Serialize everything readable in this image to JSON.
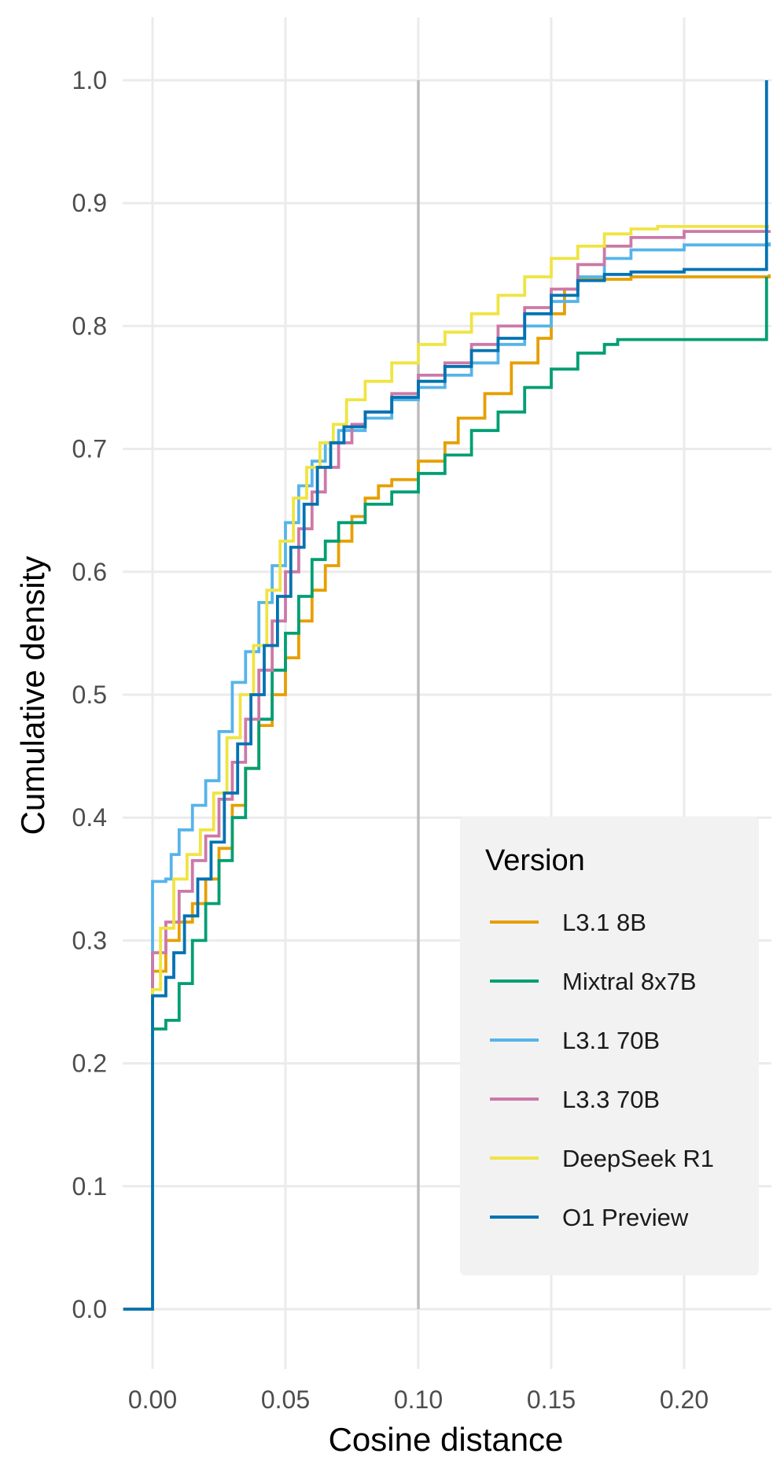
{
  "chart_data": {
    "type": "line",
    "subtype": "step-ecdf",
    "xlabel": "Cosine distance",
    "ylabel": "Cumulative density",
    "xlim": [
      -0.011,
      0.232
    ],
    "ylim": [
      -0.05,
      1.05
    ],
    "x_ticks": [
      0.0,
      0.05,
      0.1,
      0.15,
      0.2
    ],
    "x_tick_labels": [
      "0.00",
      "0.05",
      "0.10",
      "0.15",
      "0.20"
    ],
    "y_ticks": [
      0.0,
      0.1,
      0.2,
      0.3,
      0.4,
      0.5,
      0.6,
      0.7,
      0.8,
      0.9,
      1.0
    ],
    "y_tick_labels": [
      "0.0",
      "0.1",
      "0.2",
      "0.3",
      "0.4",
      "0.5",
      "0.6",
      "0.7",
      "0.8",
      "0.9",
      "1.0"
    ],
    "grid": true,
    "reference_line": {
      "x": 0.1,
      "color": "#bdbdbd"
    },
    "legend": {
      "title": "Version",
      "position": "bottom-right"
    },
    "series": [
      {
        "name": "L3.1 8B",
        "color": "#E69F00",
        "points": [
          [
            -0.011,
            0
          ],
          [
            0,
            0
          ],
          [
            0,
            0.275
          ],
          [
            0.005,
            0.3
          ],
          [
            0.01,
            0.315
          ],
          [
            0.015,
            0.33
          ],
          [
            0.02,
            0.35
          ],
          [
            0.025,
            0.375
          ],
          [
            0.03,
            0.41
          ],
          [
            0.035,
            0.44
          ],
          [
            0.04,
            0.475
          ],
          [
            0.045,
            0.5
          ],
          [
            0.05,
            0.53
          ],
          [
            0.055,
            0.56
          ],
          [
            0.06,
            0.585
          ],
          [
            0.065,
            0.605
          ],
          [
            0.07,
            0.625
          ],
          [
            0.075,
            0.645
          ],
          [
            0.08,
            0.66
          ],
          [
            0.085,
            0.67
          ],
          [
            0.09,
            0.675
          ],
          [
            0.1,
            0.69
          ],
          [
            0.11,
            0.705
          ],
          [
            0.115,
            0.725
          ],
          [
            0.125,
            0.745
          ],
          [
            0.135,
            0.77
          ],
          [
            0.145,
            0.79
          ],
          [
            0.15,
            0.81
          ],
          [
            0.155,
            0.83
          ],
          [
            0.16,
            0.838
          ],
          [
            0.18,
            0.84
          ],
          [
            0.232,
            0.842
          ]
        ]
      },
      {
        "name": "Mixtral 8x7B",
        "color": "#009E73",
        "points": [
          [
            -0.011,
            0
          ],
          [
            0,
            0
          ],
          [
            0,
            0.228
          ],
          [
            0.005,
            0.235
          ],
          [
            0.01,
            0.265
          ],
          [
            0.015,
            0.3
          ],
          [
            0.02,
            0.33
          ],
          [
            0.025,
            0.365
          ],
          [
            0.03,
            0.4
          ],
          [
            0.035,
            0.44
          ],
          [
            0.04,
            0.48
          ],
          [
            0.045,
            0.52
          ],
          [
            0.05,
            0.55
          ],
          [
            0.055,
            0.58
          ],
          [
            0.06,
            0.61
          ],
          [
            0.065,
            0.625
          ],
          [
            0.07,
            0.64
          ],
          [
            0.08,
            0.655
          ],
          [
            0.09,
            0.665
          ],
          [
            0.1,
            0.68
          ],
          [
            0.11,
            0.695
          ],
          [
            0.12,
            0.715
          ],
          [
            0.13,
            0.73
          ],
          [
            0.14,
            0.75
          ],
          [
            0.15,
            0.765
          ],
          [
            0.16,
            0.778
          ],
          [
            0.17,
            0.785
          ],
          [
            0.175,
            0.789
          ],
          [
            0.231,
            0.789
          ],
          [
            0.231,
            0.84
          ]
        ]
      },
      {
        "name": "L3.1 70B",
        "color": "#56B4E9",
        "points": [
          [
            -0.011,
            0
          ],
          [
            0,
            0
          ],
          [
            0,
            0.348
          ],
          [
            0.005,
            0.35
          ],
          [
            0.007,
            0.37
          ],
          [
            0.01,
            0.39
          ],
          [
            0.015,
            0.41
          ],
          [
            0.02,
            0.43
          ],
          [
            0.025,
            0.47
          ],
          [
            0.03,
            0.51
          ],
          [
            0.035,
            0.535
          ],
          [
            0.04,
            0.575
          ],
          [
            0.045,
            0.605
          ],
          [
            0.05,
            0.64
          ],
          [
            0.055,
            0.67
          ],
          [
            0.06,
            0.69
          ],
          [
            0.065,
            0.705
          ],
          [
            0.07,
            0.715
          ],
          [
            0.08,
            0.725
          ],
          [
            0.09,
            0.74
          ],
          [
            0.1,
            0.75
          ],
          [
            0.11,
            0.76
          ],
          [
            0.12,
            0.77
          ],
          [
            0.13,
            0.785
          ],
          [
            0.14,
            0.8
          ],
          [
            0.15,
            0.82
          ],
          [
            0.16,
            0.84
          ],
          [
            0.17,
            0.855
          ],
          [
            0.18,
            0.862
          ],
          [
            0.2,
            0.866
          ],
          [
            0.232,
            0.868
          ]
        ]
      },
      {
        "name": "L3.3 70B",
        "color": "#CC79A7",
        "points": [
          [
            -0.011,
            0
          ],
          [
            0,
            0
          ],
          [
            0,
            0.29
          ],
          [
            0.005,
            0.315
          ],
          [
            0.01,
            0.34
          ],
          [
            0.015,
            0.365
          ],
          [
            0.02,
            0.385
          ],
          [
            0.025,
            0.415
          ],
          [
            0.03,
            0.445
          ],
          [
            0.035,
            0.48
          ],
          [
            0.04,
            0.52
          ],
          [
            0.045,
            0.56
          ],
          [
            0.05,
            0.6
          ],
          [
            0.055,
            0.635
          ],
          [
            0.06,
            0.665
          ],
          [
            0.065,
            0.685
          ],
          [
            0.07,
            0.705
          ],
          [
            0.075,
            0.72
          ],
          [
            0.08,
            0.73
          ],
          [
            0.09,
            0.745
          ],
          [
            0.1,
            0.76
          ],
          [
            0.11,
            0.77
          ],
          [
            0.12,
            0.785
          ],
          [
            0.13,
            0.8
          ],
          [
            0.14,
            0.815
          ],
          [
            0.15,
            0.83
          ],
          [
            0.16,
            0.85
          ],
          [
            0.17,
            0.865
          ],
          [
            0.18,
            0.872
          ],
          [
            0.2,
            0.877
          ],
          [
            0.232,
            0.878
          ]
        ]
      },
      {
        "name": "DeepSeek R1",
        "color": "#F0E442",
        "points": [
          [
            -0.011,
            0
          ],
          [
            0,
            0
          ],
          [
            0,
            0.26
          ],
          [
            0.003,
            0.31
          ],
          [
            0.008,
            0.35
          ],
          [
            0.013,
            0.37
          ],
          [
            0.018,
            0.39
          ],
          [
            0.023,
            0.42
          ],
          [
            0.028,
            0.465
          ],
          [
            0.033,
            0.5
          ],
          [
            0.038,
            0.54
          ],
          [
            0.043,
            0.585
          ],
          [
            0.048,
            0.625
          ],
          [
            0.053,
            0.66
          ],
          [
            0.058,
            0.685
          ],
          [
            0.063,
            0.705
          ],
          [
            0.068,
            0.72
          ],
          [
            0.073,
            0.74
          ],
          [
            0.08,
            0.755
          ],
          [
            0.09,
            0.77
          ],
          [
            0.1,
            0.785
          ],
          [
            0.11,
            0.795
          ],
          [
            0.12,
            0.81
          ],
          [
            0.13,
            0.825
          ],
          [
            0.14,
            0.84
          ],
          [
            0.15,
            0.855
          ],
          [
            0.16,
            0.865
          ],
          [
            0.17,
            0.875
          ],
          [
            0.18,
            0.879
          ],
          [
            0.19,
            0.881
          ],
          [
            0.232,
            0.881
          ]
        ]
      },
      {
        "name": "O1 Preview",
        "color": "#0072B2",
        "points": [
          [
            -0.011,
            0
          ],
          [
            0,
            0
          ],
          [
            0,
            0.255
          ],
          [
            0.005,
            0.27
          ],
          [
            0.008,
            0.29
          ],
          [
            0.012,
            0.32
          ],
          [
            0.017,
            0.35
          ],
          [
            0.022,
            0.38
          ],
          [
            0.027,
            0.42
          ],
          [
            0.032,
            0.46
          ],
          [
            0.037,
            0.5
          ],
          [
            0.042,
            0.54
          ],
          [
            0.047,
            0.58
          ],
          [
            0.052,
            0.62
          ],
          [
            0.057,
            0.655
          ],
          [
            0.062,
            0.685
          ],
          [
            0.067,
            0.705
          ],
          [
            0.072,
            0.718
          ],
          [
            0.08,
            0.73
          ],
          [
            0.09,
            0.742
          ],
          [
            0.1,
            0.755
          ],
          [
            0.11,
            0.767
          ],
          [
            0.12,
            0.78
          ],
          [
            0.13,
            0.79
          ],
          [
            0.14,
            0.81
          ],
          [
            0.15,
            0.825
          ],
          [
            0.16,
            0.837
          ],
          [
            0.17,
            0.842
          ],
          [
            0.18,
            0.844
          ],
          [
            0.2,
            0.846
          ],
          [
            0.231,
            0.846
          ],
          [
            0.231,
            1.0
          ]
        ]
      }
    ]
  }
}
